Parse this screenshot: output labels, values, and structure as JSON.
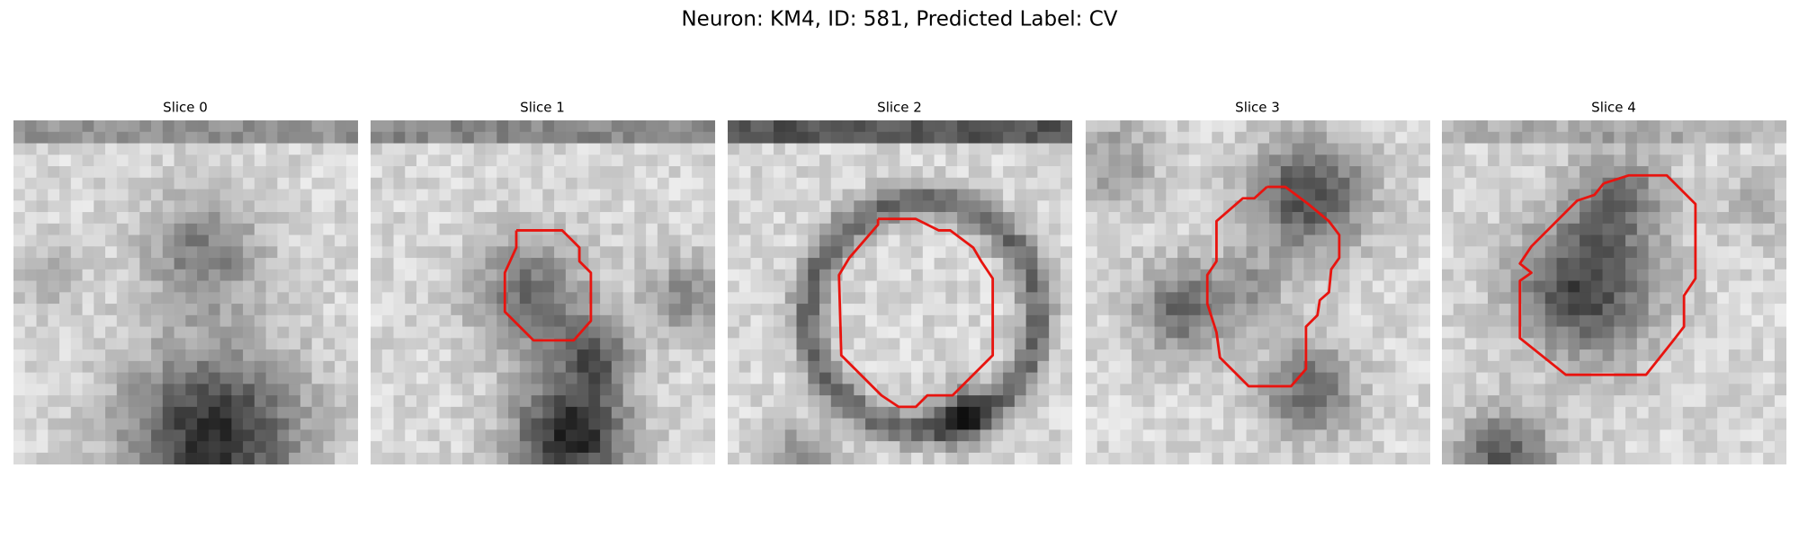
{
  "title": "Neuron: KM4, ID: 581, Predicted Label: CV",
  "panels": [
    {
      "title": "Slice 0"
    },
    {
      "title": "Slice 1"
    },
    {
      "title": "Slice 2"
    },
    {
      "title": "Slice 3"
    },
    {
      "title": "Slice 4"
    }
  ]
}
